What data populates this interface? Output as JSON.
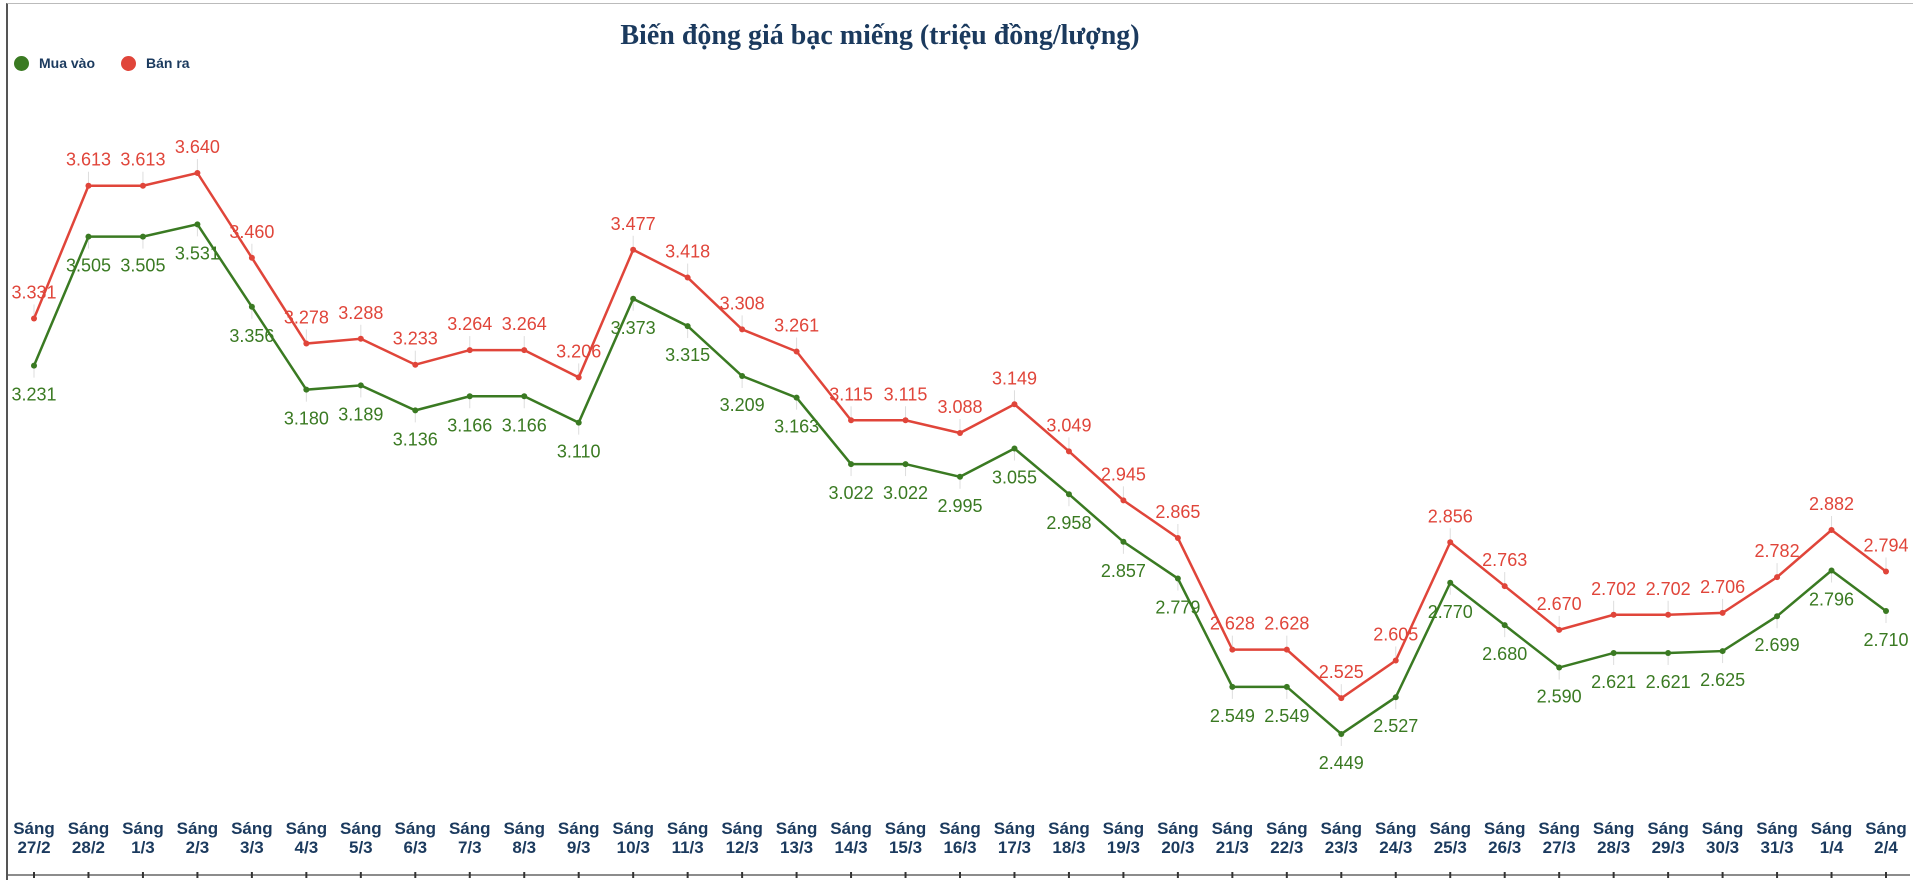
{
  "chart_data": {
    "type": "line",
    "title": "Biến động giá bạc miếng (triệu đồng/lượng)",
    "xlabel": "",
    "ylabel": "",
    "categories": [
      "Sáng 27/2",
      "Sáng 28/2",
      "Sáng 1/3",
      "Sáng 2/3",
      "Sáng 3/3",
      "Sáng 4/3",
      "Sáng 5/3",
      "Sáng 6/3",
      "Sáng 7/3",
      "Sáng 8/3",
      "Sáng 9/3",
      "Sáng 10/3",
      "Sáng 11/3",
      "Sáng 12/3",
      "Sáng 13/3",
      "Sáng 14/3",
      "Sáng 15/3",
      "Sáng 16/3",
      "Sáng 17/3",
      "Sáng 18/3",
      "Sáng 19/3",
      "Sáng 20/3",
      "Sáng 21/3",
      "Sáng 22/3",
      "Sáng 23/3",
      "Sáng 24/3",
      "Sáng 25/3",
      "Sáng 26/3",
      "Sáng 27/3",
      "Sáng 28/3",
      "Sáng 29/3",
      "Sáng 30/3",
      "Sáng 31/3",
      "Sáng 1/4",
      "Sáng 2/4"
    ],
    "series": [
      {
        "name": "Mua vào",
        "color": "#3a7a22",
        "values": [
          3.231,
          3.505,
          3.505,
          3.531,
          3.356,
          3.18,
          3.189,
          3.136,
          3.166,
          3.166,
          3.11,
          3.373,
          3.315,
          3.209,
          3.163,
          3.022,
          3.022,
          2.995,
          3.055,
          2.958,
          2.857,
          2.779,
          2.549,
          2.549,
          2.449,
          2.527,
          2.77,
          2.68,
          2.59,
          2.621,
          2.621,
          2.625,
          2.699,
          2.796,
          2.71
        ]
      },
      {
        "name": "Bán ra",
        "color": "#e0453a",
        "values": [
          3.331,
          3.613,
          3.613,
          3.64,
          3.46,
          3.278,
          3.288,
          3.233,
          3.264,
          3.264,
          3.206,
          3.477,
          3.418,
          3.308,
          3.261,
          3.115,
          3.115,
          3.088,
          3.149,
          3.049,
          2.945,
          2.865,
          2.628,
          2.628,
          2.525,
          2.605,
          2.856,
          2.763,
          2.67,
          2.702,
          2.702,
          2.706,
          2.782,
          2.882,
          2.794
        ]
      }
    ],
    "data_labels": true,
    "legend": "top-left",
    "grid": false
  }
}
